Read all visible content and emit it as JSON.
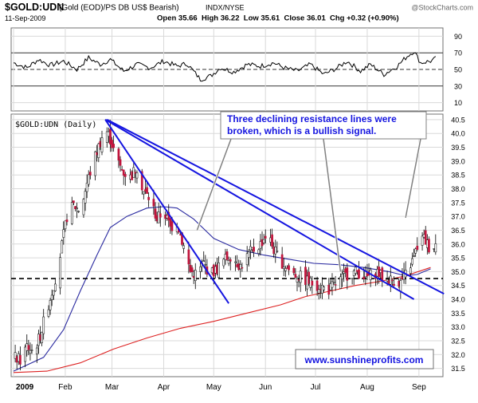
{
  "header": {
    "symbol": "$GOLD:UDN",
    "description": "(Gold (EOD)/PS DB US$ Bearish)",
    "exchange": "INDX/NYSE",
    "date": "11-Sep-2009",
    "ohlc": "Open 35.66  High 36.22  Low 35.61  Close 36.01  Chg +0.32 (+0.90%)",
    "watermark": "@StockCharts.com"
  },
  "colors": {
    "background": "#ffffff",
    "panel_border": "#707070",
    "grid": "#d9d9d9",
    "up_candle": "#ffffff",
    "down_candle": "#c0143c",
    "ma_short": "#2a2aa0",
    "ma_long": "#dd2222",
    "trendline": "#1515e0",
    "support": "#000000",
    "annotation_text": "#1515e0",
    "annotation_pointer": "#808080"
  },
  "chart_data": [
    {
      "type": "line",
      "panel": "rsi",
      "indicator": "RSI",
      "ylim": [
        0,
        100
      ],
      "yticks": [
        "90",
        "70",
        "50",
        "30",
        "10"
      ],
      "reference_lines": [
        70,
        50,
        30
      ],
      "grid": true
    },
    {
      "type": "candlestick",
      "panel": "price",
      "title": "$GOLD:UDN (Daily)",
      "ylim": [
        31.2,
        40.7
      ],
      "yticks": [
        "40.5",
        "40.0",
        "39.5",
        "39.0",
        "38.5",
        "38.0",
        "37.5",
        "37.0",
        "36.5",
        "36.0",
        "35.5",
        "35.0",
        "34.5",
        "34.0",
        "33.5",
        "33.0",
        "32.5",
        "32.0",
        "31.5"
      ],
      "xticks": [
        {
          "label": "2009",
          "day": 0
        },
        {
          "label": "Feb",
          "day": 31
        },
        {
          "label": "Mar",
          "day": 59
        },
        {
          "label": "Apr",
          "day": 90
        },
        {
          "label": "May",
          "day": 120
        },
        {
          "label": "Jun",
          "day": 151
        },
        {
          "label": "Jul",
          "day": 181
        },
        {
          "label": "Aug",
          "day": 212
        },
        {
          "label": "Sep",
          "day": 243
        }
      ],
      "moving_averages": [
        {
          "color": "#2a2aa0",
          "points": [
            [
              0,
              31.4
            ],
            [
              18,
              31.9
            ],
            [
              30,
              32.9
            ],
            [
              40,
              34.3
            ],
            [
              50,
              35.6
            ],
            [
              58,
              36.6
            ],
            [
              68,
              37.0
            ],
            [
              80,
              37.3
            ],
            [
              90,
              37.35
            ],
            [
              98,
              37.3
            ],
            [
              108,
              36.9
            ],
            [
              120,
              36.2
            ],
            [
              135,
              35.8
            ],
            [
              150,
              35.6
            ],
            [
              165,
              35.45
            ],
            [
              180,
              35.3
            ],
            [
              195,
              35.25
            ],
            [
              210,
              35.15
            ],
            [
              225,
              35.0
            ],
            [
              235,
              34.85
            ],
            [
              242,
              34.9
            ],
            [
              250,
              35.1
            ]
          ]
        },
        {
          "color": "#dd2222",
          "points": [
            [
              0,
              31.35
            ],
            [
              20,
              31.4
            ],
            [
              40,
              31.7
            ],
            [
              60,
              32.2
            ],
            [
              80,
              32.6
            ],
            [
              100,
              32.95
            ],
            [
              120,
              33.2
            ],
            [
              140,
              33.5
            ],
            [
              160,
              33.8
            ],
            [
              175,
              34.1
            ],
            [
              190,
              34.3
            ],
            [
              205,
              34.5
            ],
            [
              220,
              34.65
            ],
            [
              235,
              34.85
            ],
            [
              250,
              35.15
            ]
          ]
        }
      ],
      "support_level": 34.75,
      "trendlines": [
        {
          "from": [
            55,
            40.5
          ],
          "to": [
            129,
            33.85
          ]
        },
        {
          "from": [
            55,
            40.5
          ],
          "to": [
            240,
            34.0
          ]
        },
        {
          "from": [
            56,
            40.5
          ],
          "to": [
            258,
            34.2
          ]
        }
      ],
      "annotation": {
        "text_lines": [
          "Three declining resistance lines were",
          "broken, which is a bullish signal."
        ],
        "pointers": [
          [
            110,
            36.5
          ],
          [
            196,
            35.0
          ],
          [
            235,
            36.95
          ]
        ]
      },
      "credit": "www.sunshineprofits.com"
    }
  ]
}
